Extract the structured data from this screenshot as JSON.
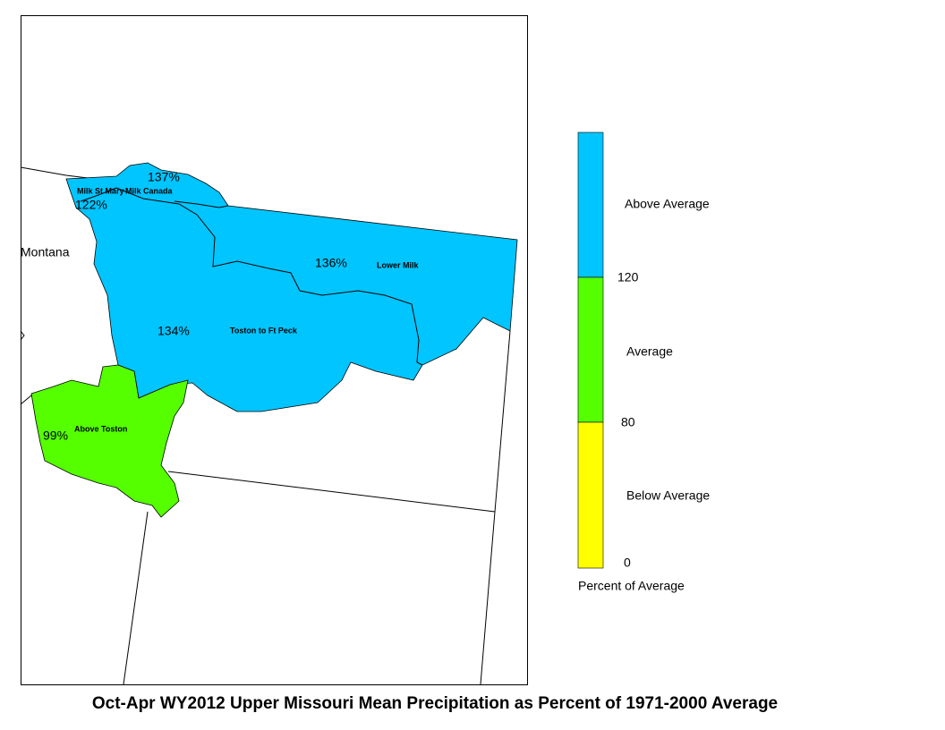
{
  "map": {
    "title": "Oct-Apr WY2012 Upper Missouri Mean Precipitation as Percent of 1971-2000 Average",
    "state_label": "Montana",
    "basins": [
      {
        "name": "Milk St Mary",
        "percent": "122%"
      },
      {
        "name": "Milk Canada",
        "percent": "137%"
      },
      {
        "name": "Lower Milk",
        "percent": "136%"
      },
      {
        "name": "Toston to Ft Peck",
        "percent": "134%"
      },
      {
        "name": "Above Toston",
        "percent": "99%"
      }
    ],
    "legend": {
      "classes": [
        {
          "label": "Above Average",
          "color": "#00c5ff"
        },
        {
          "label": "Average",
          "color": "#55ff00"
        },
        {
          "label": "Below Average",
          "color": "#ffff00"
        }
      ],
      "ticks": [
        120,
        80,
        0
      ],
      "caption": "Percent of Average"
    }
  }
}
